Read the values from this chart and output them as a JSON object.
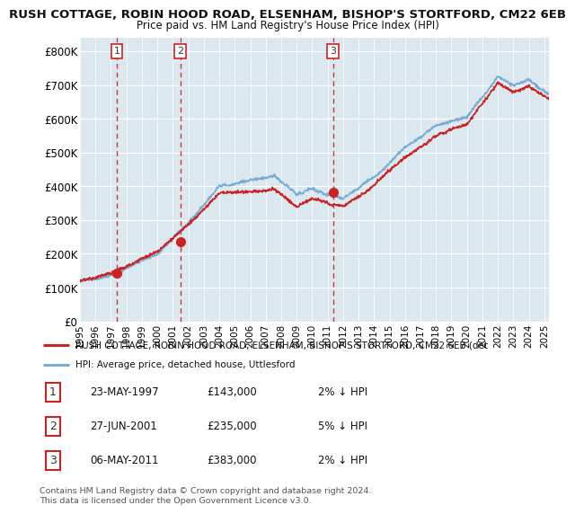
{
  "title1": "RUSH COTTAGE, ROBIN HOOD ROAD, ELSENHAM, BISHOP'S STORTFORD, CM22 6EB",
  "title2": "Price paid vs. HM Land Registry's House Price Index (HPI)",
  "ylabel_ticks": [
    "£0",
    "£100K",
    "£200K",
    "£300K",
    "£400K",
    "£500K",
    "£600K",
    "£700K",
    "£800K"
  ],
  "ytick_values": [
    0,
    100000,
    200000,
    300000,
    400000,
    500000,
    600000,
    700000,
    800000
  ],
  "xlim_start": 1995.0,
  "xlim_end": 2025.3,
  "ylim": [
    0,
    840000
  ],
  "sale_dates": [
    1997.39,
    2001.49,
    2011.35
  ],
  "sale_prices": [
    143000,
    235000,
    383000
  ],
  "sale_labels": [
    "1",
    "2",
    "3"
  ],
  "legend_line1": "RUSH COTTAGE, ROBIN HOOD ROAD, ELSENHAM, BISHOP'S STORTFORD, CM22 6EB (det",
  "legend_line2": "HPI: Average price, detached house, Uttlesford",
  "table_data": [
    [
      "1",
      "23-MAY-1997",
      "£143,000",
      "2% ↓ HPI"
    ],
    [
      "2",
      "27-JUN-2001",
      "£235,000",
      "5% ↓ HPI"
    ],
    [
      "3",
      "06-MAY-2011",
      "£383,000",
      "2% ↓ HPI"
    ]
  ],
  "footnote1": "Contains HM Land Registry data © Crown copyright and database right 2024.",
  "footnote2": "This data is licensed under the Open Government Licence v3.0.",
  "hpi_color": "#7aadd4",
  "price_color": "#cc2222",
  "plot_bg": "#dce8f0",
  "grid_color": "#ffffff",
  "fig_bg": "#ffffff"
}
